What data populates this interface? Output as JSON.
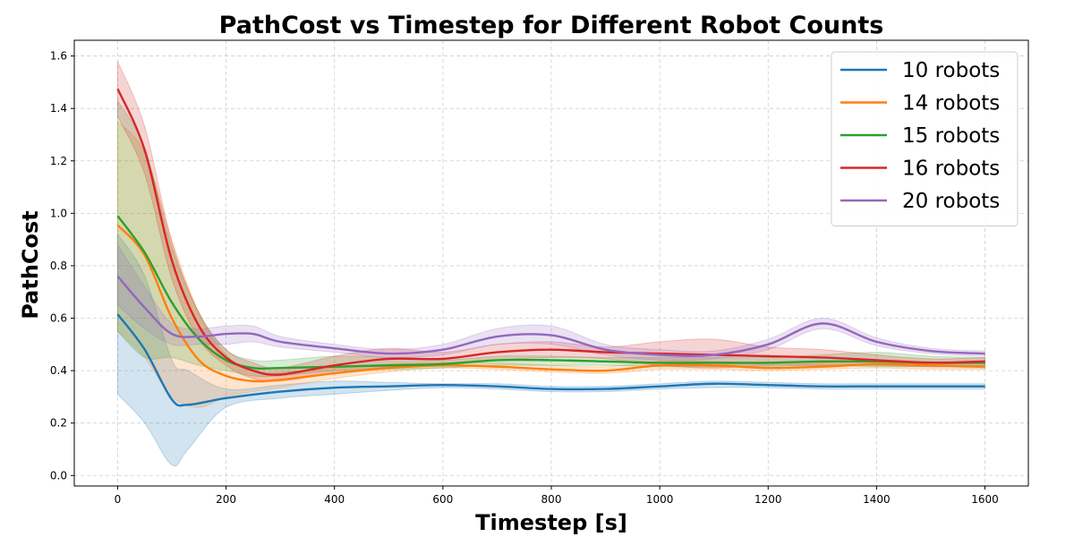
{
  "chart_data": {
    "type": "line",
    "title": "PathCost vs Timestep for Different Robot Counts",
    "xlabel": "Timestep [s]",
    "ylabel": "PathCost",
    "xlim": [
      -80,
      1680
    ],
    "ylim": [
      -0.04,
      1.66
    ],
    "xticks": [
      0,
      200,
      400,
      600,
      800,
      1000,
      1200,
      1400,
      1600
    ],
    "yticks": [
      0.0,
      0.2,
      0.4,
      0.6,
      0.8,
      1.0,
      1.2,
      1.4,
      1.6
    ],
    "grid": true,
    "legend_position": "top-right",
    "series": [
      {
        "name": "10 robots",
        "color": "#1f77b4",
        "x": [
          0,
          50,
          100,
          130,
          200,
          300,
          400,
          500,
          600,
          700,
          800,
          900,
          1000,
          1100,
          1200,
          1300,
          1400,
          1500,
          1600
        ],
        "mean": [
          0.615,
          0.48,
          0.29,
          0.27,
          0.295,
          0.32,
          0.335,
          0.34,
          0.345,
          0.34,
          0.33,
          0.33,
          0.34,
          0.35,
          0.345,
          0.34,
          0.34,
          0.34,
          0.34
        ],
        "lower": [
          0.31,
          0.2,
          0.04,
          0.1,
          0.26,
          0.295,
          0.31,
          0.325,
          0.335,
          0.33,
          0.32,
          0.32,
          0.33,
          0.335,
          0.335,
          0.33,
          0.33,
          0.33,
          0.33
        ],
        "upper": [
          0.92,
          0.76,
          0.44,
          0.4,
          0.33,
          0.345,
          0.36,
          0.355,
          0.35,
          0.35,
          0.34,
          0.34,
          0.35,
          0.36,
          0.355,
          0.35,
          0.35,
          0.35,
          0.35
        ]
      },
      {
        "name": "14 robots",
        "color": "#ff7f0e",
        "x": [
          0,
          50,
          100,
          150,
          200,
          250,
          300,
          400,
          500,
          600,
          700,
          800,
          900,
          1000,
          1100,
          1200,
          1300,
          1400,
          1500,
          1600
        ],
        "mean": [
          0.955,
          0.84,
          0.6,
          0.44,
          0.38,
          0.36,
          0.365,
          0.39,
          0.41,
          0.42,
          0.415,
          0.405,
          0.4,
          0.42,
          0.42,
          0.41,
          0.415,
          0.425,
          0.42,
          0.415
        ],
        "lower": [
          0.55,
          0.45,
          0.3,
          0.26,
          0.3,
          0.32,
          0.335,
          0.37,
          0.395,
          0.41,
          0.405,
          0.395,
          0.39,
          0.405,
          0.405,
          0.4,
          0.405,
          0.41,
          0.405,
          0.405
        ],
        "upper": [
          1.35,
          1.23,
          0.9,
          0.62,
          0.46,
          0.4,
          0.395,
          0.41,
          0.425,
          0.43,
          0.43,
          0.42,
          0.415,
          0.435,
          0.435,
          0.425,
          0.43,
          0.44,
          0.435,
          0.43
        ]
      },
      {
        "name": "15 robots",
        "color": "#2ca02c",
        "x": [
          0,
          50,
          100,
          150,
          200,
          250,
          300,
          400,
          500,
          600,
          700,
          800,
          900,
          1000,
          1100,
          1200,
          1300,
          1400,
          1500,
          1600
        ],
        "mean": [
          0.99,
          0.85,
          0.66,
          0.52,
          0.44,
          0.41,
          0.41,
          0.415,
          0.42,
          0.425,
          0.44,
          0.44,
          0.435,
          0.43,
          0.43,
          0.43,
          0.435,
          0.435,
          0.43,
          0.43
        ],
        "lower": [
          0.55,
          0.45,
          0.45,
          0.42,
          0.4,
          0.38,
          0.38,
          0.4,
          0.405,
          0.41,
          0.42,
          0.42,
          0.42,
          0.415,
          0.415,
          0.415,
          0.42,
          0.415,
          0.415,
          0.41
        ],
        "upper": [
          1.43,
          1.25,
          0.87,
          0.62,
          0.48,
          0.44,
          0.44,
          0.455,
          0.45,
          0.44,
          0.455,
          0.455,
          0.45,
          0.45,
          0.45,
          0.45,
          0.46,
          0.47,
          0.455,
          0.45
        ]
      },
      {
        "name": "16 robots",
        "color": "#d62728",
        "x": [
          0,
          50,
          100,
          150,
          200,
          250,
          300,
          400,
          500,
          600,
          700,
          800,
          900,
          1000,
          1100,
          1200,
          1300,
          1400,
          1500,
          1600
        ],
        "mean": [
          1.475,
          1.24,
          0.82,
          0.57,
          0.45,
          0.4,
          0.385,
          0.42,
          0.445,
          0.445,
          0.47,
          0.48,
          0.47,
          0.465,
          0.46,
          0.455,
          0.45,
          0.44,
          0.43,
          0.435
        ],
        "lower": [
          1.37,
          1.15,
          0.75,
          0.52,
          0.42,
          0.37,
          0.36,
          0.39,
          0.415,
          0.425,
          0.44,
          0.45,
          0.445,
          0.42,
          0.41,
          0.42,
          0.42,
          0.42,
          0.415,
          0.42
        ],
        "upper": [
          1.58,
          1.33,
          0.89,
          0.62,
          0.48,
          0.43,
          0.41,
          0.455,
          0.485,
          0.47,
          0.5,
          0.51,
          0.49,
          0.51,
          0.52,
          0.49,
          0.48,
          0.46,
          0.445,
          0.45
        ]
      },
      {
        "name": "20 robots",
        "color": "#9467bd",
        "x": [
          0,
          50,
          100,
          150,
          200,
          250,
          300,
          400,
          500,
          600,
          700,
          800,
          900,
          1000,
          1100,
          1200,
          1300,
          1400,
          1500,
          1600
        ],
        "mean": [
          0.76,
          0.64,
          0.54,
          0.53,
          0.54,
          0.54,
          0.51,
          0.485,
          0.465,
          0.48,
          0.53,
          0.535,
          0.48,
          0.46,
          0.46,
          0.5,
          0.58,
          0.51,
          0.475,
          0.465
        ],
        "lower": [
          0.65,
          0.56,
          0.5,
          0.5,
          0.5,
          0.51,
          0.49,
          0.47,
          0.45,
          0.46,
          0.5,
          0.5,
          0.46,
          0.44,
          0.445,
          0.48,
          0.56,
          0.495,
          0.465,
          0.455
        ],
        "upper": [
          0.88,
          0.72,
          0.58,
          0.56,
          0.57,
          0.57,
          0.53,
          0.5,
          0.48,
          0.5,
          0.56,
          0.57,
          0.5,
          0.48,
          0.475,
          0.52,
          0.6,
          0.525,
          0.485,
          0.475
        ]
      }
    ]
  }
}
